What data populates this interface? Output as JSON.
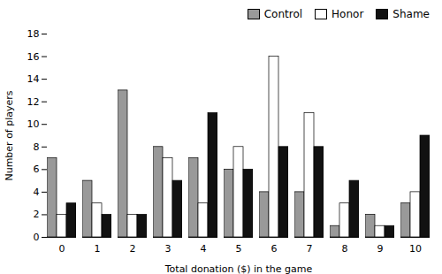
{
  "chart_data": {
    "type": "bar",
    "xlabel": "Total donation ($) in the game",
    "ylabel": "Number of players",
    "categories": [
      0,
      1,
      2,
      3,
      4,
      5,
      6,
      7,
      8,
      9,
      10
    ],
    "series": [
      {
        "name": "Control",
        "color": "#999999",
        "values": [
          7,
          5,
          13,
          8,
          7,
          6,
          4,
          4,
          1,
          2,
          3
        ]
      },
      {
        "name": "Honor",
        "color": "#ffffff",
        "values": [
          2,
          3,
          2,
          7,
          3,
          8,
          16,
          11,
          3,
          1,
          4
        ]
      },
      {
        "name": "Shame",
        "color": "#111111",
        "values": [
          3,
          2,
          2,
          5,
          11,
          6,
          8,
          8,
          5,
          1,
          9
        ]
      }
    ],
    "ylim": [
      0,
      18
    ],
    "yticks": [
      0,
      2,
      4,
      6,
      8,
      10,
      12,
      14,
      16,
      18
    ],
    "legend": "upper right",
    "grid": false
  }
}
